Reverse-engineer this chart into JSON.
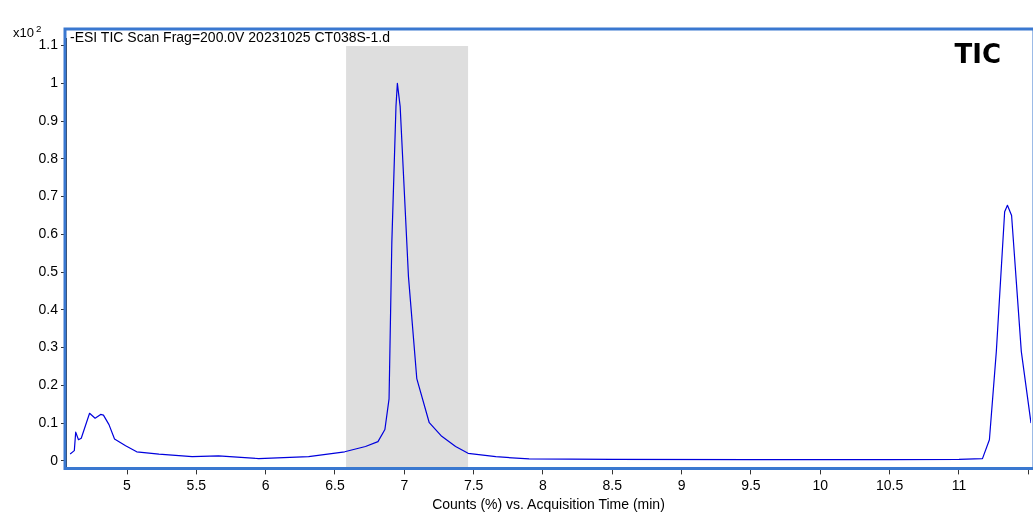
{
  "chart_data": {
    "type": "line",
    "title": "-ESI TIC Scan Frag=200.0V 20231025 CT038S-1.d",
    "xlabel": "Counts (%) vs. Acquisition Time (min)",
    "ylabel": "x10$^{2}$",
    "annotations": [
      "TIC"
    ],
    "series": [
      {
        "color": "#0000dd",
        "x": [
          4.59,
          4.62,
          4.63,
          4.65,
          4.67,
          4.73,
          4.77,
          4.81,
          4.83,
          4.87,
          4.91,
          4.99,
          5.07,
          5.23,
          5.47,
          5.66,
          5.95,
          6.31,
          6.57,
          6.72,
          6.81,
          6.86,
          6.89,
          6.91,
          6.94,
          6.95,
          6.97,
          7.03,
          7.09,
          7.18,
          7.27,
          7.37,
          7.46,
          7.66,
          7.9,
          8.5,
          9.5,
          10.0,
          10.5,
          11.0,
          11.17,
          11.22,
          11.27,
          11.33,
          11.35,
          11.38,
          11.45,
          11.52
        ],
        "values": [
          0.018,
          0.027,
          0.076,
          0.056,
          0.06,
          0.126,
          0.113,
          0.123,
          0.121,
          0.096,
          0.058,
          0.04,
          0.024,
          0.018,
          0.011,
          0.013,
          0.006,
          0.011,
          0.024,
          0.038,
          0.051,
          0.083,
          0.164,
          0.578,
          0.939,
          1.0,
          0.939,
          0.488,
          0.218,
          0.101,
          0.065,
          0.038,
          0.02,
          0.011,
          0.005,
          0.004,
          0.003,
          0.003,
          0.003,
          0.004,
          0.006,
          0.056,
          0.29,
          0.66,
          0.677,
          0.65,
          0.29,
          0.1
        ]
      }
    ],
    "bands": [
      {
        "axis": "x",
        "from": 6.58,
        "to": 7.46,
        "color": "#dedede"
      }
    ],
    "xlim": [
      4.56,
      11.52
    ],
    "xticks": [
      5,
      5.5,
      6,
      6.5,
      7,
      7.5,
      8,
      8.5,
      9,
      9.5,
      10,
      10.5,
      11,
      {
        "value": 11.5,
        "label": null
      }
    ],
    "ylim": [
      -0.02,
      1.12
    ],
    "yticks": [
      0,
      0.1,
      0.2,
      0.3,
      0.4,
      0.5,
      0.6,
      0.7,
      0.8,
      0.9,
      1,
      1.1
    ],
    "grid": false,
    "legend": false,
    "marker": "none",
    "line_style": "solid"
  }
}
